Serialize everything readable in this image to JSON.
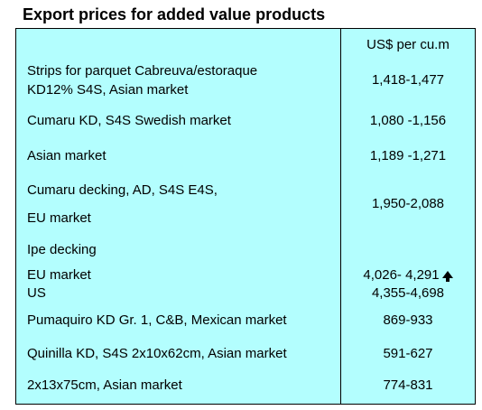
{
  "title": "Export prices for added value products",
  "header": {
    "unit": "US$ per cu.m"
  },
  "rows": [
    {
      "lines": [
        "Strips for parquet Cabreuva/estoraque",
        " KD12% S4S, Asian market"
      ],
      "value": "1,418-1,477"
    },
    {
      "lines": [
        "Cumaru KD, S4S Swedish market"
      ],
      "value": "1,080 -1,156"
    },
    {
      "lines": [
        "Asian market"
      ],
      "value": "1,189 -1,271"
    },
    {
      "lines": [
        "Cumaru decking, AD, S4S E4S,",
        "EU market"
      ],
      "value": "1,950-2,088"
    },
    {
      "lines": [
        "Ipe decking"
      ]
    },
    {
      "lines": [
        "EU market"
      ],
      "value": "4,026- 4,291",
      "trend": "up-arrow-icon"
    },
    {
      "lines": [
        "US"
      ],
      "value": "4,355-4,698"
    },
    {
      "lines": [
        "Pumaquiro KD Gr. 1, C&B,  Mexican market"
      ],
      "value": "869-933"
    },
    {
      "lines": [
        "Quinilla KD, S4S 2x10x62cm,  Asian market"
      ],
      "value": "591-627"
    },
    {
      "lines": [
        "2x13x75cm, Asian market"
      ],
      "value": "774-831"
    }
  ]
}
